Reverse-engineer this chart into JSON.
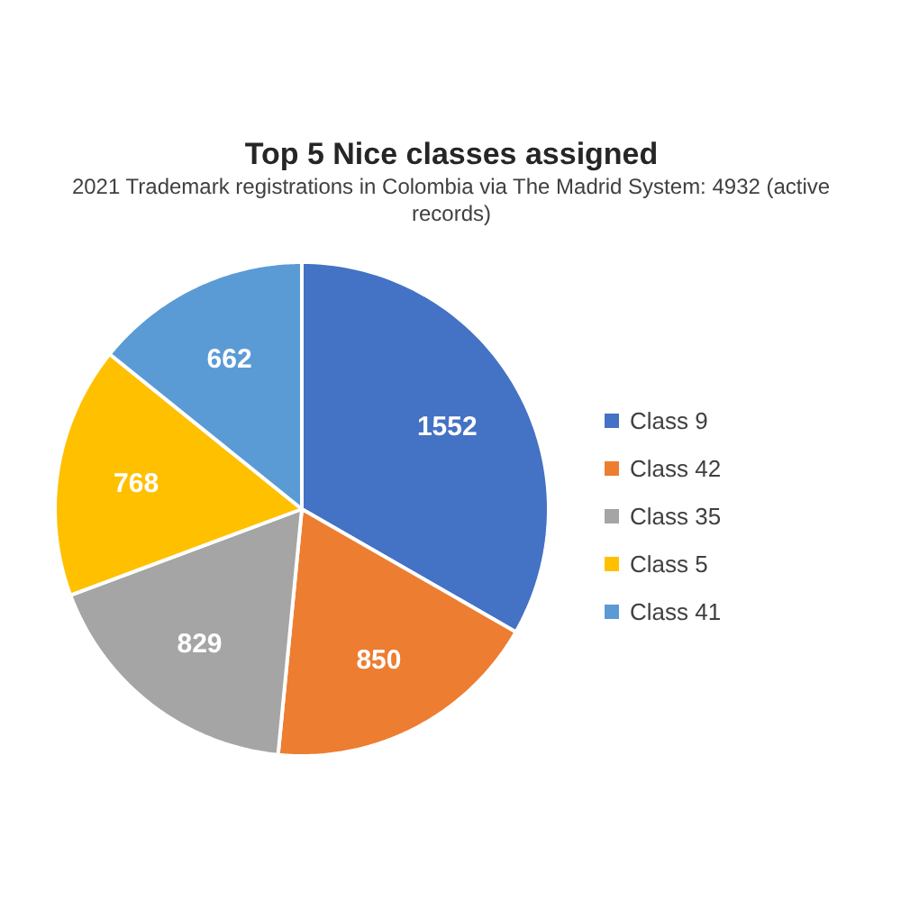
{
  "chart_data": {
    "type": "pie",
    "title": "Top 5 Nice classes assigned",
    "subtitle": "2021 Trademark registrations in Colombia via The Madrid System: 4932 (active records)",
    "categories": [
      "Class 9",
      "Class 42",
      "Class 35",
      "Class 5",
      "Class 41"
    ],
    "values": [
      1552,
      850,
      829,
      768,
      662
    ],
    "colors": [
      "#4472c4",
      "#ed7d31",
      "#a5a5a5",
      "#ffc000",
      "#5b9bd5"
    ],
    "data_labels": true,
    "legend": "right"
  }
}
